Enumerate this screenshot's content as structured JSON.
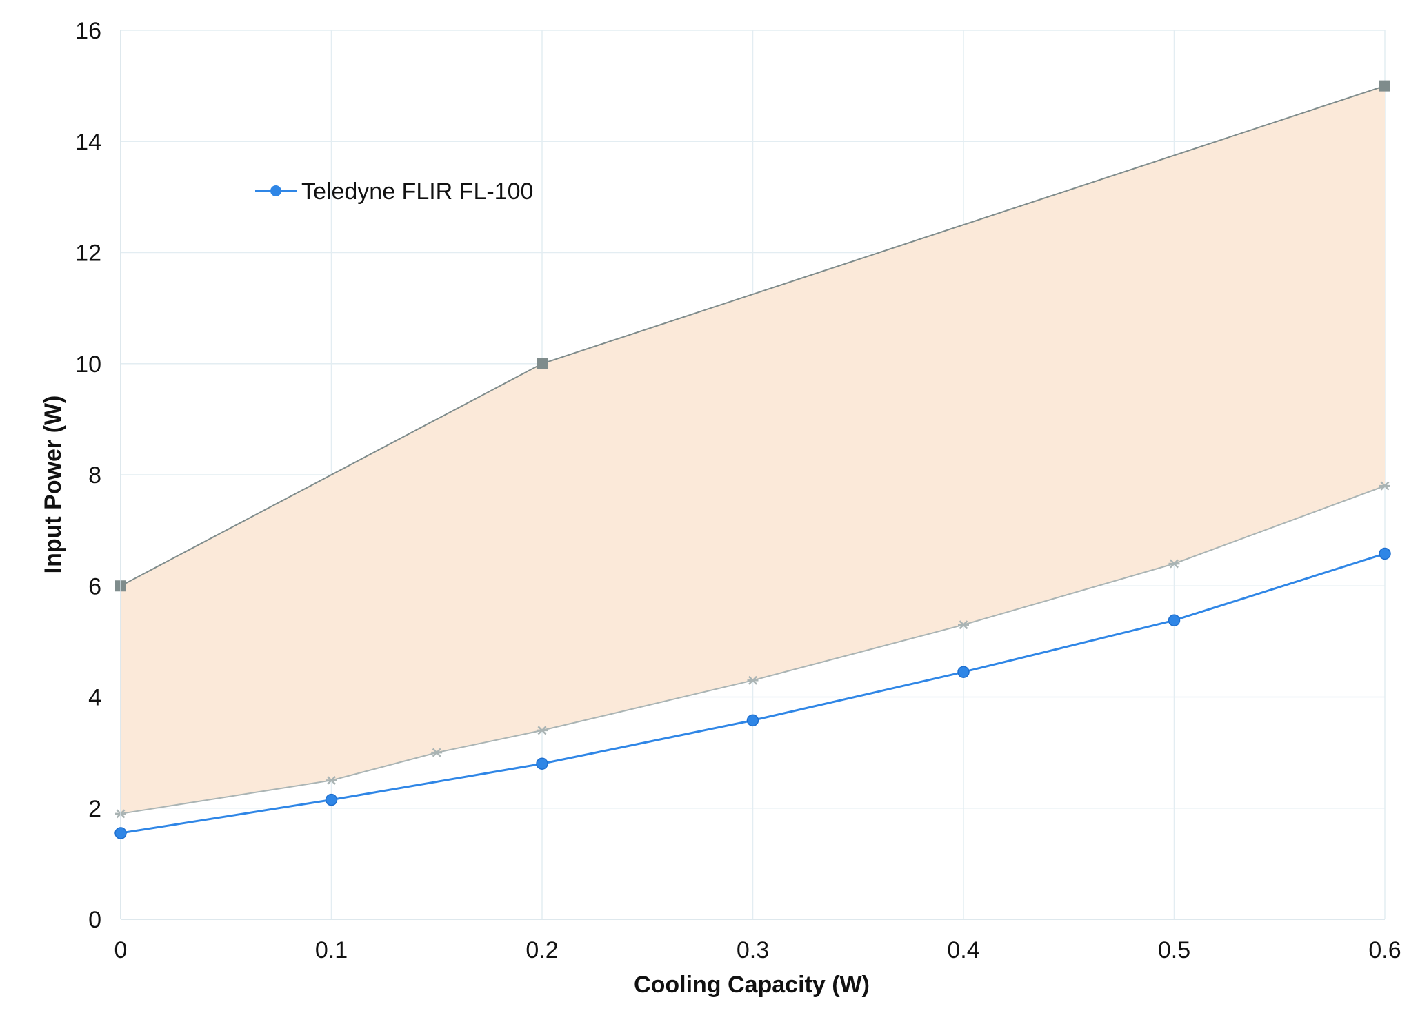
{
  "chart_data": {
    "type": "line",
    "title": "",
    "xlabel": "Cooling Capacity (W)",
    "ylabel": "Input Power (W)",
    "xlim": [
      0,
      0.6
    ],
    "ylim": [
      0,
      16
    ],
    "x_ticks": [
      "0",
      "0.1",
      "0.2",
      "0.3",
      "0.4",
      "0.5",
      "0.6"
    ],
    "y_ticks": [
      "0",
      "2",
      "4",
      "6",
      "8",
      "10",
      "12",
      "14",
      "16"
    ],
    "grid": true,
    "legend_position": "upper-left",
    "shaded_band": {
      "fill_color": "#fbe9d9",
      "upper": {
        "x": [
          0,
          0.2,
          0.6
        ],
        "y": [
          6.0,
          10.0,
          15.0
        ],
        "color": "#7f8c8c",
        "marker": "square"
      },
      "lower": {
        "x": [
          0,
          0.1,
          0.15,
          0.2,
          0.3,
          0.4,
          0.5,
          0.6
        ],
        "y": [
          1.9,
          2.5,
          3.0,
          3.4,
          4.3,
          5.3,
          6.4,
          7.8
        ],
        "color": "#aab4b4",
        "marker": "star"
      }
    },
    "series": [
      {
        "name": "Teledyne FLIR FL-100",
        "x": [
          0,
          0.1,
          0.2,
          0.3,
          0.4,
          0.5,
          0.6
        ],
        "y": [
          1.55,
          2.15,
          2.8,
          3.58,
          4.45,
          5.38,
          6.58
        ],
        "color": "#2f86e6",
        "marker": "circle"
      }
    ]
  }
}
